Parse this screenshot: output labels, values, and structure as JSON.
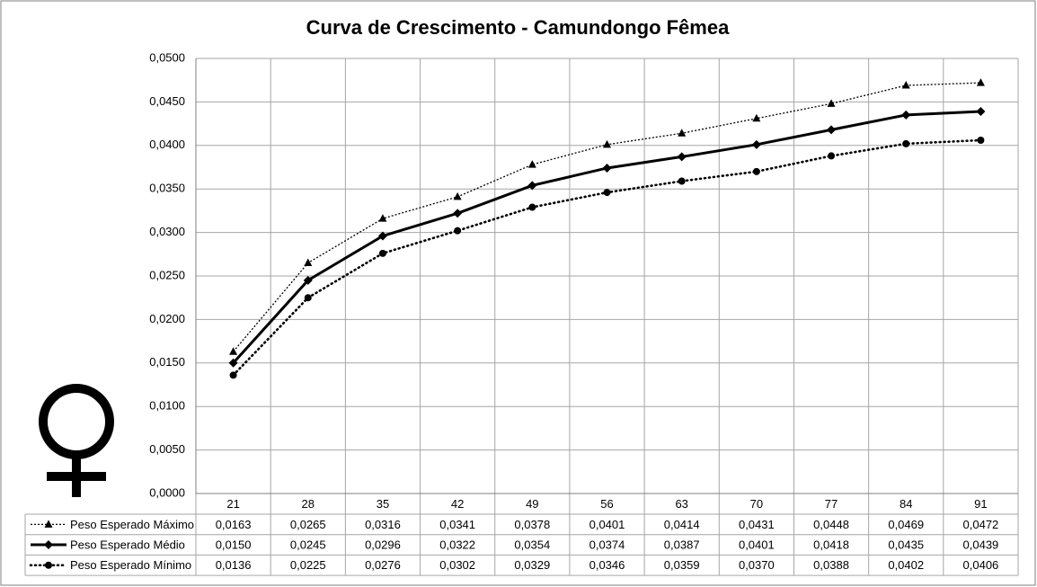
{
  "chart_data": {
    "type": "line",
    "title": "Curva de Crescimento - Camundongo Fêmea",
    "categories": [
      "21",
      "28",
      "35",
      "42",
      "49",
      "56",
      "63",
      "70",
      "77",
      "84",
      "91"
    ],
    "series": [
      {
        "name": "Peso Esperado Máximo",
        "color": "#000000",
        "marker": "triangle",
        "line_style": "dotted",
        "values": [
          0.0163,
          0.0265,
          0.0316,
          0.0341,
          0.0378,
          0.0401,
          0.0414,
          0.0431,
          0.0448,
          0.0469,
          0.0472
        ],
        "value_labels": [
          "0,0163",
          "0,0265",
          "0,0316",
          "0,0341",
          "0,0378",
          "0,0401",
          "0,0414",
          "0,0431",
          "0,0448",
          "0,0469",
          "0,0472"
        ]
      },
      {
        "name": "Peso Esperado Médio",
        "color": "#000000",
        "marker": "diamond",
        "line_style": "solid",
        "values": [
          0.015,
          0.0245,
          0.0296,
          0.0322,
          0.0354,
          0.0374,
          0.0387,
          0.0401,
          0.0418,
          0.0435,
          0.0439
        ],
        "value_labels": [
          "0,0150",
          "0,0245",
          "0,0296",
          "0,0322",
          "0,0354",
          "0,0374",
          "0,0387",
          "0,0401",
          "0,0418",
          "0,0435",
          "0,0439"
        ]
      },
      {
        "name": "Peso Esperado Mínimo",
        "color": "#000000",
        "marker": "circle",
        "line_style": "round-dotted",
        "values": [
          0.0136,
          0.0225,
          0.0276,
          0.0302,
          0.0329,
          0.0346,
          0.0359,
          0.037,
          0.0388,
          0.0402,
          0.0406
        ],
        "value_labels": [
          "0,0136",
          "0,0225",
          "0,0276",
          "0,0302",
          "0,0329",
          "0,0346",
          "0,0359",
          "0,0370",
          "0,0388",
          "0,0402",
          "0,0406"
        ]
      }
    ],
    "ylim": [
      0,
      0.05
    ],
    "yticks": [
      {
        "value": 0,
        "label": "0,0000"
      },
      {
        "value": 0.005,
        "label": "0,0050"
      },
      {
        "value": 0.01,
        "label": "0,0100"
      },
      {
        "value": 0.015,
        "label": "0,0150"
      },
      {
        "value": 0.02,
        "label": "0,0200"
      },
      {
        "value": 0.025,
        "label": "0,0250"
      },
      {
        "value": 0.03,
        "label": "0,0300"
      },
      {
        "value": 0.035,
        "label": "0,0350"
      },
      {
        "value": 0.04,
        "label": "0,0400"
      },
      {
        "value": 0.045,
        "label": "0,0450"
      },
      {
        "value": 0.05,
        "label": "0,0500"
      }
    ],
    "grid": true
  }
}
